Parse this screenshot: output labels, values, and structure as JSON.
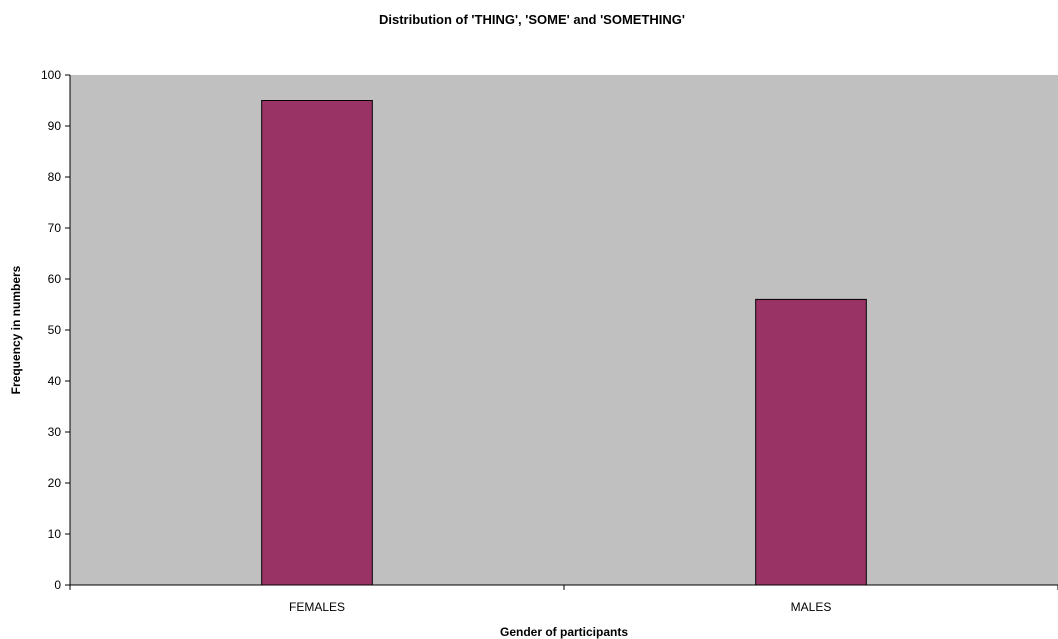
{
  "chart_data": {
    "type": "bar",
    "title": "Distribution of 'THING', 'SOME' and 'SOMETHING'",
    "xlabel": "Gender of participants",
    "ylabel": "Frequency in numbers",
    "categories": [
      "FEMALES",
      "MALES"
    ],
    "values": [
      95,
      56
    ],
    "ylim": [
      0,
      100
    ],
    "yticks": [
      "0",
      "10",
      "20",
      "30",
      "40",
      "50",
      "60",
      "70",
      "80",
      "90",
      "100"
    ],
    "grid": false,
    "legend": "none"
  },
  "colors": {
    "bar": "#993366",
    "plot_background": "#c0c0c0",
    "axis": "#000000"
  }
}
